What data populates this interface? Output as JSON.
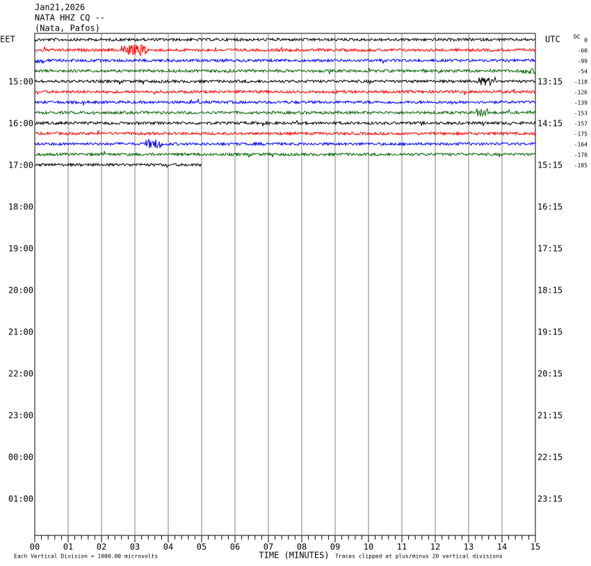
{
  "header": {
    "date": "Jan21,2026",
    "station": "NATA HHZ CQ --",
    "location": "(Nata, Pafos)"
  },
  "left_label": "EET",
  "right_label": "UTC",
  "dc_label": "DC",
  "dc_offsets": [
    "0",
    "-60",
    "-99",
    "-54",
    "-118",
    "-126",
    "-139",
    "-153",
    "-157",
    "-175",
    "-164",
    "-170",
    "-185"
  ],
  "left_times": [
    "15:00",
    "16:00",
    "17:00",
    "18:00",
    "19:00",
    "20:00",
    "21:00",
    "22:00",
    "23:00",
    "00:00",
    "01:00"
  ],
  "right_times": [
    "13:15",
    "14:15",
    "15:15",
    "16:15",
    "17:15",
    "18:15",
    "19:15",
    "20:15",
    "21:15",
    "22:15",
    "23:15"
  ],
  "x_ticks": [
    "00",
    "01",
    "02",
    "03",
    "04",
    "05",
    "06",
    "07",
    "08",
    "09",
    "10",
    "11",
    "12",
    "13",
    "14",
    "15"
  ],
  "x_axis_title": "TIME (MINUTES)",
  "scale_note": "Each Vertical Division = 1000.00 microvolts",
  "clip_note": "Traces clipped at plus/minus 20 vertical divisions"
}
